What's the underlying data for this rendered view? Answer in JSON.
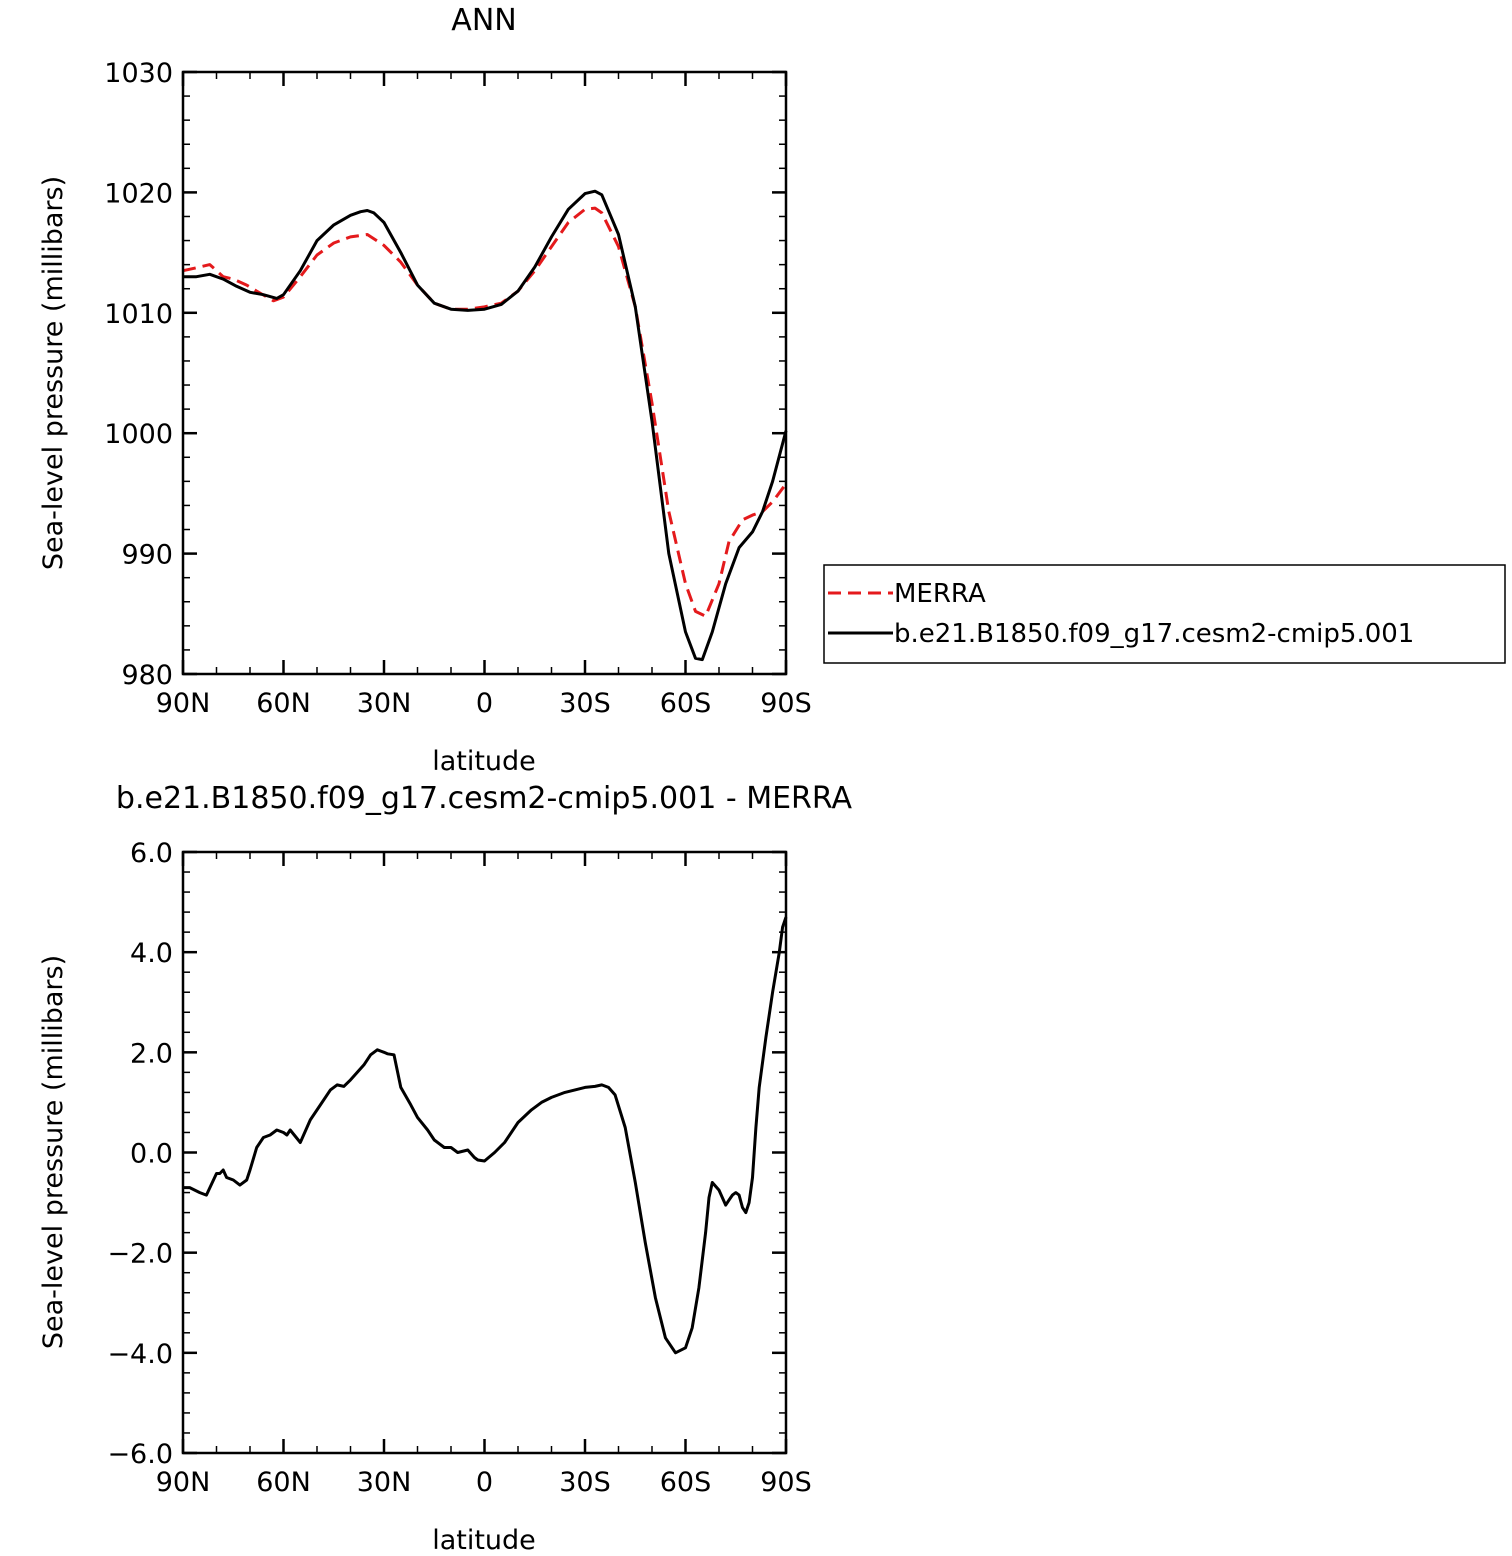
{
  "chart_data": [
    {
      "type": "line",
      "title": "ANN",
      "xlabel": "latitude",
      "ylabel": "Sea-level pressure (millibars)",
      "xlim": [
        90,
        -90
      ],
      "ylim": [
        980,
        1030
      ],
      "xticks": [
        90,
        60,
        30,
        0,
        -30,
        -60,
        -90
      ],
      "xtick_labels": [
        "90N",
        "60N",
        "30N",
        "0",
        "30S",
        "60S",
        "90S"
      ],
      "yticks": [
        980,
        990,
        1000,
        1010,
        1020,
        1030
      ],
      "ytick_labels": [
        "980",
        "990",
        "1000",
        "1010",
        "1020",
        "1030"
      ],
      "grid": false,
      "legend_position": "right",
      "series": [
        {
          "name": "MERRA",
          "color": "#e41a1c",
          "dash": "dashed",
          "x": [
            90,
            85,
            82,
            78,
            75,
            71,
            68,
            63,
            60,
            55,
            50,
            45,
            40,
            35,
            30,
            25,
            20,
            15,
            10,
            5,
            0,
            -5,
            -10,
            -15,
            -20,
            -25,
            -30,
            -33,
            -35,
            -40,
            -45,
            -50,
            -55,
            -60,
            -63,
            -66,
            -70,
            -73,
            -77,
            -80,
            -83,
            -86,
            -90
          ],
          "y": [
            1013.5,
            1013.8,
            1014.0,
            1013.0,
            1012.8,
            1012.3,
            1011.8,
            1011.0,
            1011.3,
            1013.0,
            1014.8,
            1015.8,
            1016.3,
            1016.5,
            1015.6,
            1014.2,
            1012.3,
            1010.8,
            1010.3,
            1010.3,
            1010.5,
            1010.8,
            1011.8,
            1013.5,
            1015.5,
            1017.5,
            1018.6,
            1018.7,
            1018.3,
            1015.5,
            1010.5,
            1002.5,
            993.5,
            987.5,
            985.2,
            984.8,
            987.5,
            991.0,
            992.8,
            993.2,
            993.5,
            994.3,
            995.8
          ]
        },
        {
          "name": "b.e21.B1850.f09_g17.cesm2-cmip5.001",
          "color": "#000000",
          "dash": "solid",
          "x": [
            90,
            86,
            82,
            78,
            74,
            70,
            66,
            62,
            60,
            55,
            50,
            45,
            40,
            37,
            35,
            33,
            30,
            25,
            20,
            15,
            10,
            5,
            0,
            -5,
            -10,
            -15,
            -20,
            -25,
            -30,
            -33,
            -35,
            -40,
            -45,
            -50,
            -55,
            -60,
            -63,
            -65,
            -68,
            -72,
            -76,
            -80,
            -83,
            -86,
            -90
          ],
          "y": [
            1013.0,
            1013.0,
            1013.2,
            1012.8,
            1012.2,
            1011.7,
            1011.5,
            1011.2,
            1011.5,
            1013.5,
            1016.0,
            1017.3,
            1018.1,
            1018.4,
            1018.5,
            1018.3,
            1017.5,
            1015.0,
            1012.3,
            1010.8,
            1010.3,
            1010.2,
            1010.3,
            1010.7,
            1011.8,
            1013.8,
            1016.3,
            1018.6,
            1019.9,
            1020.1,
            1019.8,
            1016.5,
            1010.5,
            1001.0,
            990.0,
            983.5,
            981.3,
            981.2,
            983.5,
            987.5,
            990.5,
            991.8,
            993.5,
            996.0,
            1000.2
          ]
        }
      ]
    },
    {
      "type": "line",
      "title": "b.e21.B1850.f09_g17.cesm2-cmip5.001 - MERRA",
      "xlabel": "latitude",
      "ylabel": "Sea-level pressure (millibars)",
      "xlim": [
        90,
        -90
      ],
      "ylim": [
        -6.0,
        6.0
      ],
      "xticks": [
        90,
        60,
        30,
        0,
        -30,
        -60,
        -90
      ],
      "xtick_labels": [
        "90N",
        "60N",
        "30N",
        "0",
        "30S",
        "60S",
        "90S"
      ],
      "yticks": [
        -6,
        -4,
        -2,
        0,
        2,
        4,
        6
      ],
      "ytick_labels": [
        "−6.0",
        "−4.0",
        "−2.0",
        "0.0",
        "2.0",
        "4.0",
        "6.0"
      ],
      "grid": false,
      "series": [
        {
          "color": "#000000",
          "dash": "solid",
          "x": [
            90,
            88,
            85,
            83,
            80,
            79,
            78,
            77,
            75,
            73,
            71,
            70,
            68,
            66,
            64,
            62,
            60,
            59,
            58,
            55,
            52,
            49,
            46,
            44,
            42,
            40,
            38,
            36,
            35,
            34,
            32,
            30,
            29,
            27,
            25,
            22,
            20,
            17,
            15,
            12,
            10,
            8,
            5,
            3,
            2,
            0,
            -3,
            -6,
            -10,
            -14,
            -17,
            -20,
            -24,
            -27,
            -30,
            -33,
            -35,
            -37,
            -39,
            -42,
            -45,
            -48,
            -51,
            -54,
            -57,
            -60,
            -62,
            -64,
            -66,
            -67,
            -68,
            -70,
            -72,
            -73,
            -74,
            -75,
            -76,
            -77,
            -78,
            -79,
            -80,
            -81,
            -82,
            -84,
            -86,
            -88,
            -89,
            -90
          ],
          "y": [
            -0.7,
            -0.7,
            -0.8,
            -0.85,
            -0.42,
            -0.42,
            -0.35,
            -0.5,
            -0.55,
            -0.65,
            -0.55,
            -0.35,
            0.1,
            0.3,
            0.35,
            0.45,
            0.4,
            0.35,
            0.45,
            0.2,
            0.65,
            0.95,
            1.25,
            1.35,
            1.32,
            1.45,
            1.6,
            1.75,
            1.85,
            1.95,
            2.05,
            2.0,
            1.97,
            1.95,
            1.3,
            0.95,
            0.7,
            0.45,
            0.25,
            0.1,
            0.1,
            0.0,
            0.05,
            -0.1,
            -0.15,
            -0.17,
            0.0,
            0.2,
            0.6,
            0.85,
            1.0,
            1.1,
            1.2,
            1.25,
            1.3,
            1.32,
            1.35,
            1.3,
            1.15,
            0.5,
            -0.6,
            -1.8,
            -2.9,
            -3.7,
            -4.0,
            -3.9,
            -3.5,
            -2.7,
            -1.6,
            -0.9,
            -0.6,
            -0.75,
            -1.05,
            -0.95,
            -0.85,
            -0.8,
            -0.85,
            -1.1,
            -1.2,
            -1.0,
            -0.5,
            0.5,
            1.3,
            2.3,
            3.2,
            4.0,
            4.5,
            4.7
          ]
        }
      ]
    }
  ]
}
